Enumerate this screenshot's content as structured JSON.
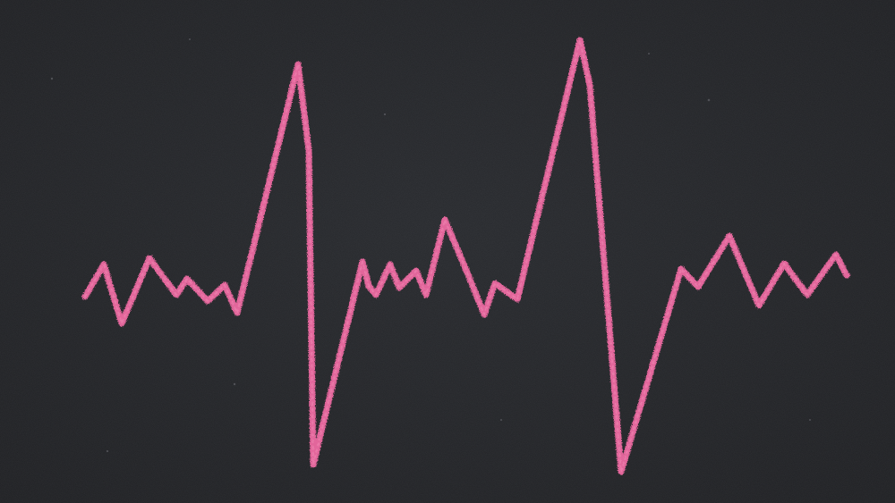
{
  "scene": {
    "subject": "chalk-heartbeat-line",
    "board_color": "#1d1e21",
    "board_highlight": "#26282c",
    "chalk_color": "#e2669b",
    "chalk_highlight": "#f08ab4"
  }
}
